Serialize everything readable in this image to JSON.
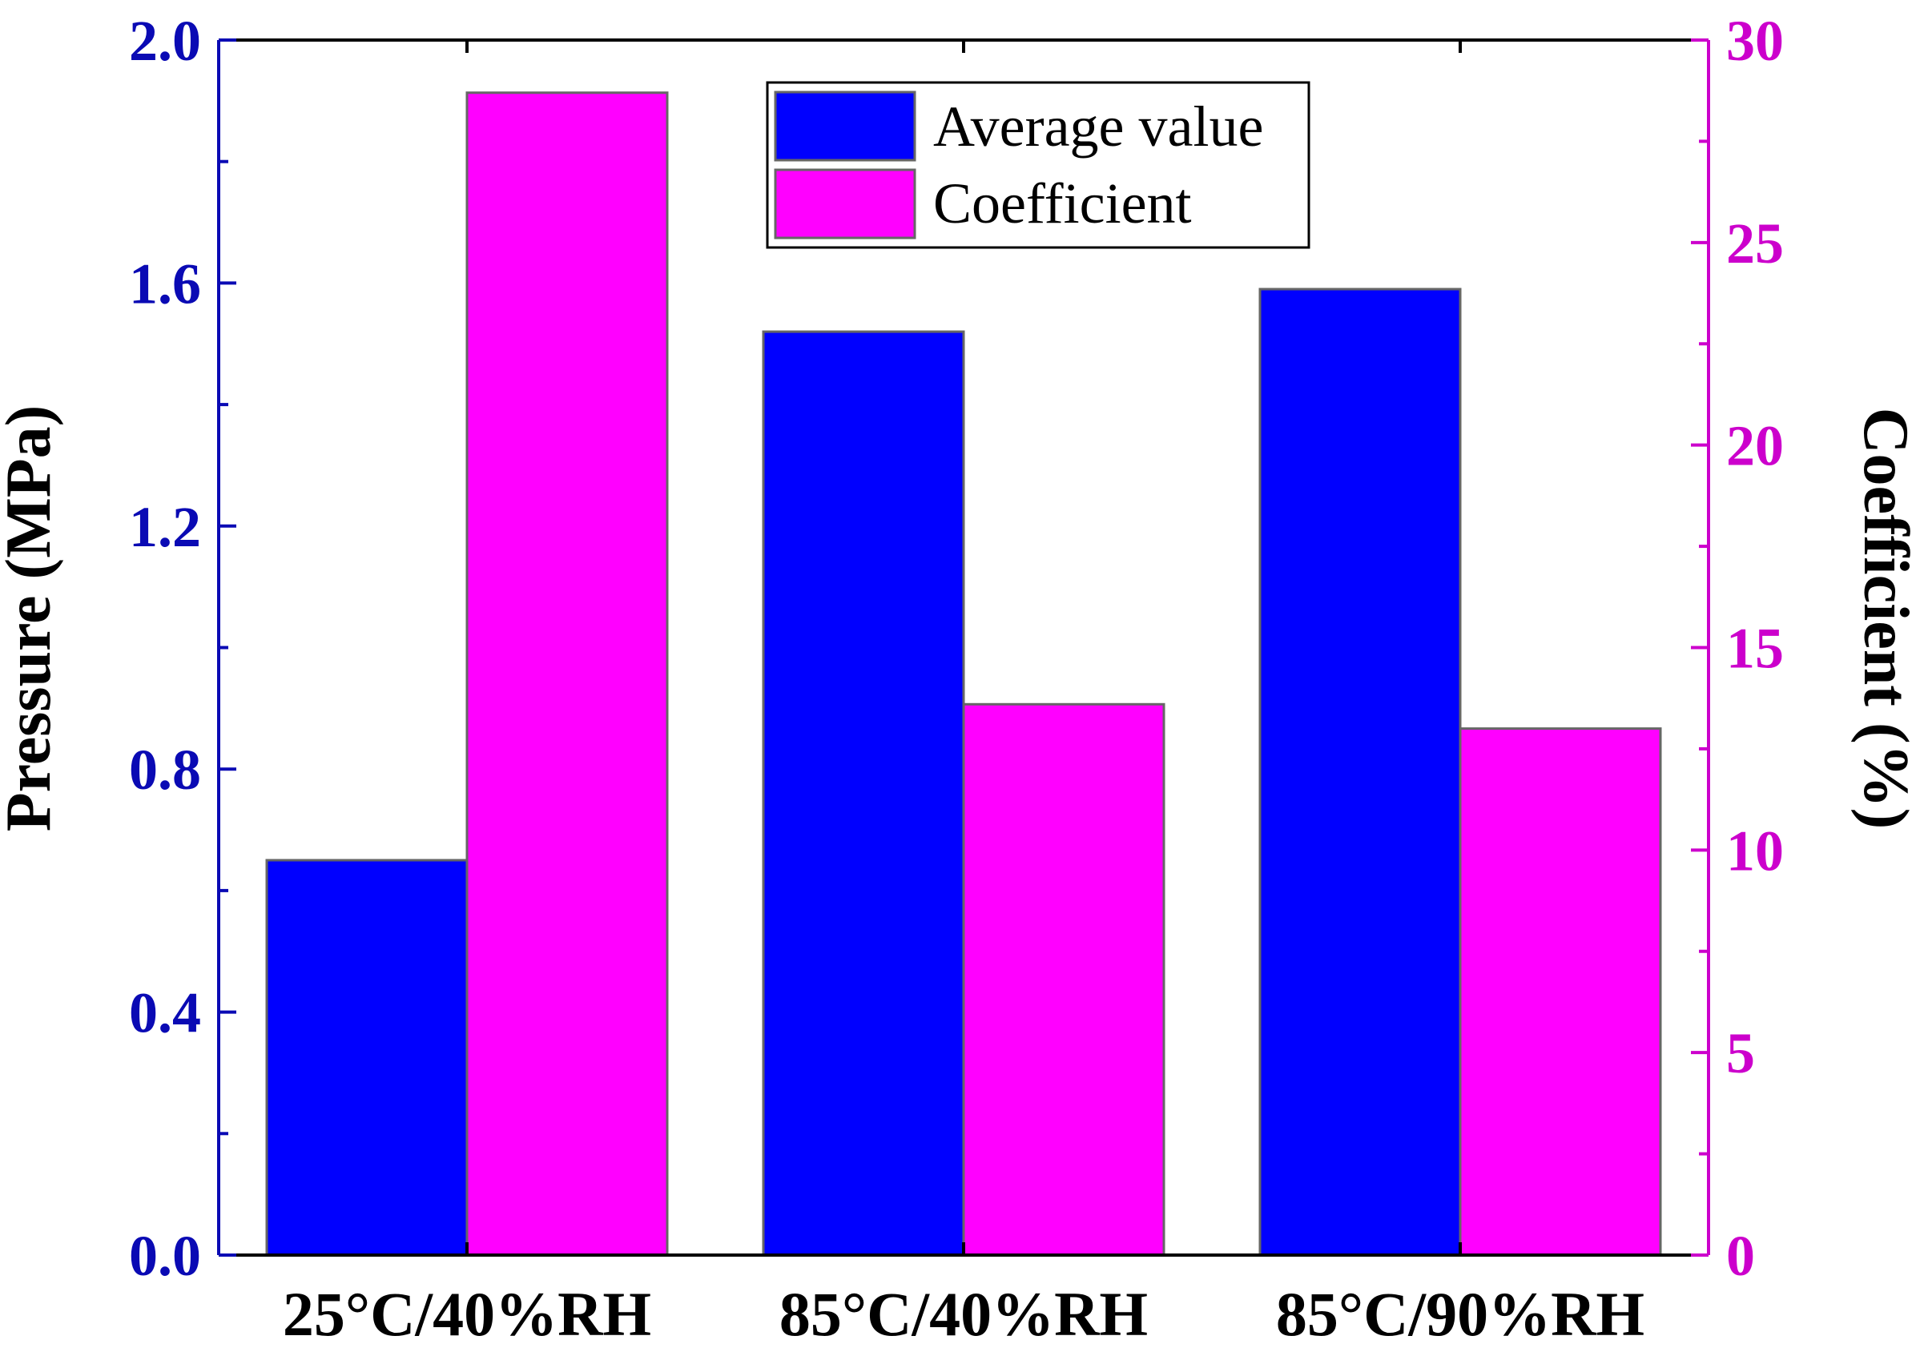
{
  "chart_data": {
    "type": "bar",
    "categories": [
      "25°C/40%RH",
      "85°C/40%RH",
      "85°C/90%RH"
    ],
    "series": [
      {
        "name": "Average value",
        "axis": "left",
        "color": "#0000ff",
        "values": [
          0.65,
          1.52,
          1.59
        ]
      },
      {
        "name": "Coefficient",
        "axis": "right",
        "color": "#ff00ff",
        "values": [
          28.7,
          13.6,
          13.0
        ]
      }
    ],
    "ylabel_left": "Pressure (MPa)",
    "ylabel_right": "Coefficient (%)",
    "ylim_left": [
      0,
      2.0
    ],
    "ylim_right": [
      0,
      30
    ],
    "yticks_left": [
      "0.0",
      "0.4",
      "0.8",
      "1.2",
      "1.6",
      "2.0"
    ],
    "yticks_right": [
      "0",
      "5",
      "10",
      "15",
      "20",
      "25",
      "30"
    ],
    "legend_position": "top-center",
    "colors": {
      "left_axis": "#0a0ab4",
      "right_axis": "#cc00cc",
      "frame": "#000000",
      "bar_border": "#666666"
    }
  }
}
